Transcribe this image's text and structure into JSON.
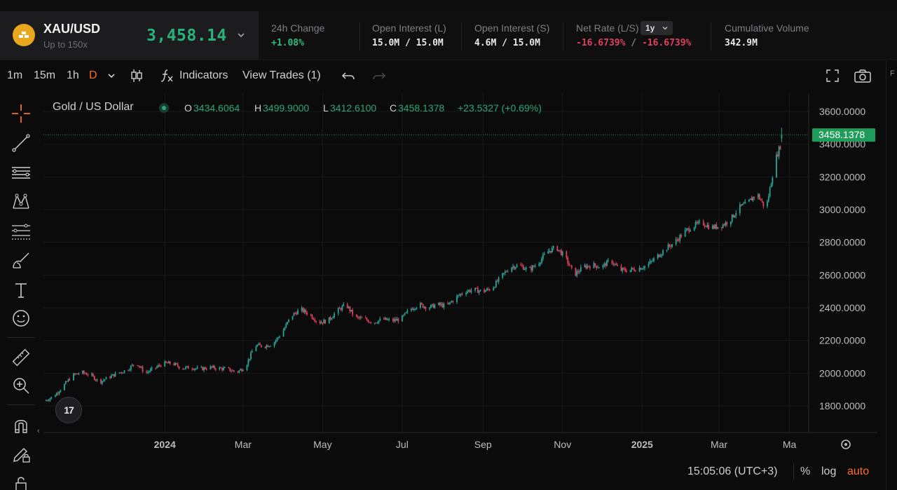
{
  "ticker": {
    "symbol": "XAU/USD",
    "leverage": "Up to 150x",
    "price": "3,458.14",
    "stats": [
      {
        "label": "24h Change",
        "value": "+1.08%",
        "tone": "green"
      },
      {
        "label": "Open Interest (L)",
        "value": "15.0M / 15.0M",
        "tone": "white"
      },
      {
        "label": "Open Interest (S)",
        "value": "4.6M / 15.0M",
        "tone": "white"
      },
      {
        "label": "Net Rate (L/S)",
        "value_long": "-16.6739%",
        "sep": "/",
        "value_short": "-16.6739%",
        "tone": "red",
        "period": "1y"
      },
      {
        "label": "Cumulative Volume",
        "value": "342.9M",
        "tone": "white"
      }
    ]
  },
  "toolbar": {
    "intervals": [
      "1m",
      "15m",
      "1h",
      "D"
    ],
    "active_interval": "D",
    "indicators_label": "Indicators",
    "view_trades_label": "View Trades (1)"
  },
  "legend": {
    "title": "Gold / US Dollar",
    "o_key": "O",
    "o_val": "3434.6064",
    "h_key": "H",
    "h_val": "3499.9000",
    "l_key": "L",
    "l_val": "3412.6100",
    "c_key": "C",
    "c_val": "3458.1378",
    "change": "+23.5327 (+0.69%)"
  },
  "logo_text": "17",
  "bottom": {
    "clock": "15:05:06 (UTC+3)",
    "percent": "%",
    "log": "log",
    "auto": "auto"
  },
  "right_strip_label": "F",
  "colors": {
    "up": "#26a69a",
    "down": "#e0405b",
    "accent": "#ff6d24",
    "price_tag": "#1f9b5a",
    "brand_gold": "#e9a81d"
  },
  "chart_data": {
    "type": "candlestick",
    "title": "Gold / US Dollar",
    "current_price": 3458.1378,
    "ylim": [
      1700,
      3650
    ],
    "y_ticks": [
      1800,
      2000,
      2200,
      2400,
      2600,
      2800,
      3000,
      3200,
      3400,
      3600
    ],
    "y_tick_labels": [
      "1800.0000",
      "2000.0000",
      "2200.0000",
      "2400.0000",
      "2600.0000",
      "2800.0000",
      "3000.0000",
      "3200.0000",
      "3400.0000",
      "3600.0000"
    ],
    "x_range": [
      "2023-10-01",
      "2025-04-28"
    ],
    "x_ticks": [
      {
        "date": "2024-01-01",
        "label": "2024",
        "bold": true
      },
      {
        "date": "2024-03-01",
        "label": "Mar"
      },
      {
        "date": "2024-05-01",
        "label": "May"
      },
      {
        "date": "2024-07-01",
        "label": "Jul"
      },
      {
        "date": "2024-09-01",
        "label": "Sep"
      },
      {
        "date": "2024-11-01",
        "label": "Nov"
      },
      {
        "date": "2025-01-01",
        "label": "2025",
        "bold": true
      },
      {
        "date": "2025-03-01",
        "label": "Mar"
      },
      {
        "date": "2025-04-24",
        "label": "Ma"
      }
    ],
    "grid": true,
    "price_line_style": "dotted",
    "close_path": [
      [
        "2023-10-01",
        1830
      ],
      [
        "2023-10-08",
        1860
      ],
      [
        "2023-10-15",
        1920
      ],
      [
        "2023-10-22",
        1985
      ],
      [
        "2023-10-29",
        2005
      ],
      [
        "2023-11-05",
        1990
      ],
      [
        "2023-11-12",
        1945
      ],
      [
        "2023-11-19",
        1975
      ],
      [
        "2023-11-26",
        2000
      ],
      [
        "2023-12-03",
        2020
      ],
      [
        "2023-12-10",
        2065
      ],
      [
        "2023-12-17",
        2000
      ],
      [
        "2023-12-24",
        2030
      ],
      [
        "2023-12-31",
        2060
      ],
      [
        "2024-01-07",
        2060
      ],
      [
        "2024-01-14",
        2030
      ],
      [
        "2024-01-21",
        2035
      ],
      [
        "2024-01-28",
        2025
      ],
      [
        "2024-02-04",
        2035
      ],
      [
        "2024-02-11",
        2030
      ],
      [
        "2024-02-18",
        2025
      ],
      [
        "2024-02-25",
        2005
      ],
      [
        "2024-03-03",
        2040
      ],
      [
        "2024-03-10",
        2170
      ],
      [
        "2024-03-17",
        2165
      ],
      [
        "2024-03-24",
        2180
      ],
      [
        "2024-03-31",
        2250
      ],
      [
        "2024-04-07",
        2350
      ],
      [
        "2024-04-14",
        2390
      ],
      [
        "2024-04-21",
        2360
      ],
      [
        "2024-04-28",
        2310
      ],
      [
        "2024-05-05",
        2320
      ],
      [
        "2024-05-12",
        2380
      ],
      [
        "2024-05-19",
        2420
      ],
      [
        "2024-05-26",
        2340
      ],
      [
        "2024-06-02",
        2330
      ],
      [
        "2024-06-09",
        2310
      ],
      [
        "2024-06-16",
        2330
      ],
      [
        "2024-06-23",
        2320
      ],
      [
        "2024-06-30",
        2330
      ],
      [
        "2024-07-07",
        2390
      ],
      [
        "2024-07-14",
        2420
      ],
      [
        "2024-07-21",
        2400
      ],
      [
        "2024-07-28",
        2420
      ],
      [
        "2024-08-04",
        2410
      ],
      [
        "2024-08-11",
        2460
      ],
      [
        "2024-08-18",
        2500
      ],
      [
        "2024-08-25",
        2510
      ],
      [
        "2024-09-01",
        2500
      ],
      [
        "2024-09-08",
        2520
      ],
      [
        "2024-09-15",
        2590
      ],
      [
        "2024-09-22",
        2650
      ],
      [
        "2024-09-29",
        2660
      ],
      [
        "2024-10-06",
        2630
      ],
      [
        "2024-10-13",
        2670
      ],
      [
        "2024-10-20",
        2740
      ],
      [
        "2024-10-27",
        2770
      ],
      [
        "2024-11-03",
        2710
      ],
      [
        "2024-11-10",
        2600
      ],
      [
        "2024-11-17",
        2650
      ],
      [
        "2024-11-24",
        2660
      ],
      [
        "2024-12-01",
        2650
      ],
      [
        "2024-12-08",
        2690
      ],
      [
        "2024-12-15",
        2630
      ],
      [
        "2024-12-22",
        2630
      ],
      [
        "2024-12-29",
        2640
      ],
      [
        "2025-01-05",
        2660
      ],
      [
        "2025-01-12",
        2710
      ],
      [
        "2025-01-19",
        2760
      ],
      [
        "2025-01-26",
        2800
      ],
      [
        "2025-02-02",
        2860
      ],
      [
        "2025-02-09",
        2900
      ],
      [
        "2025-02-16",
        2920
      ],
      [
        "2025-02-23",
        2890
      ],
      [
        "2025-03-02",
        2900
      ],
      [
        "2025-03-09",
        2930
      ],
      [
        "2025-03-16",
        3010
      ],
      [
        "2025-03-23",
        3040
      ],
      [
        "2025-03-30",
        3100
      ],
      [
        "2025-04-06",
        3000
      ],
      [
        "2025-04-13",
        3300
      ],
      [
        "2025-04-20",
        3458
      ]
    ]
  }
}
